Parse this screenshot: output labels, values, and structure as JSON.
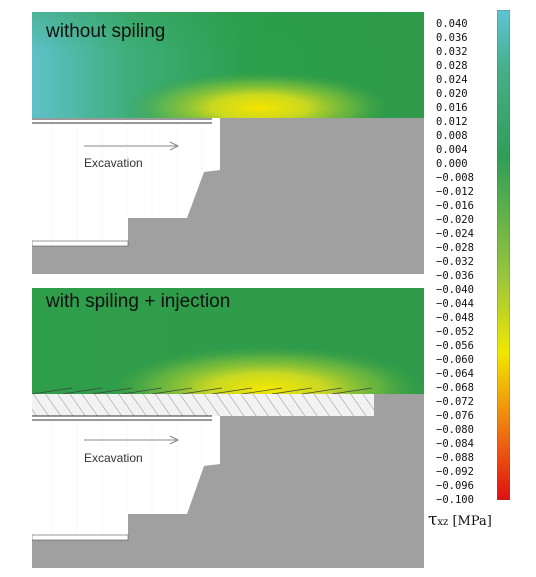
{
  "panels": [
    {
      "title": "without spiling",
      "label": "Excavation"
    },
    {
      "title": "with spiling + injection",
      "label": "Excavation"
    }
  ],
  "colorbar": {
    "ticks": [
      "0.040",
      "0.036",
      "0.032",
      "0.028",
      "0.024",
      "0.020",
      "0.016",
      "0.012",
      "0.008",
      "0.004",
      "0.000",
      "−0.008",
      "−0.012",
      "−0.016",
      "−0.020",
      "−0.024",
      "−0.028",
      "−0.032",
      "−0.036",
      "−0.040",
      "−0.044",
      "−0.048",
      "−0.052",
      "−0.056",
      "−0.060",
      "−0.064",
      "−0.068",
      "−0.072",
      "−0.076",
      "−0.080",
      "−0.084",
      "−0.088",
      "−0.092",
      "−0.096",
      "−0.100"
    ],
    "symbol": "τ",
    "subscript": "xz",
    "unit": "[MPa]",
    "colors": {
      "top": "#5fc4d6",
      "upper": "#2f9e58",
      "middle": "#f0e800",
      "lower": "#f07a10",
      "bottom": "#e01010"
    }
  }
}
